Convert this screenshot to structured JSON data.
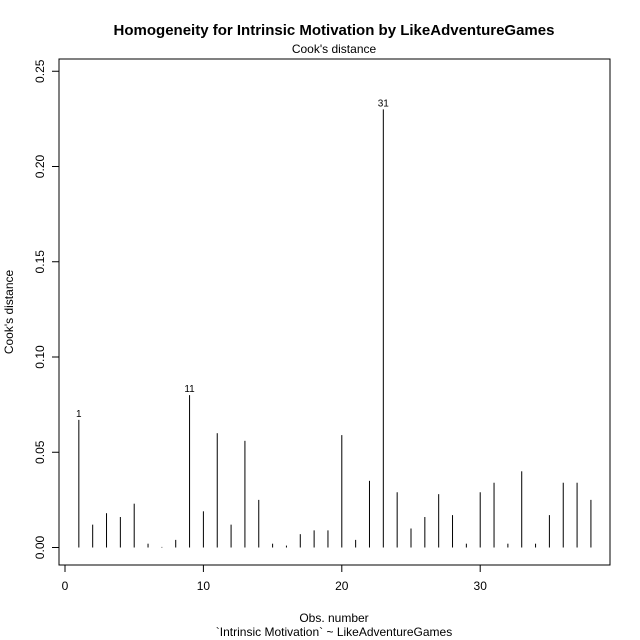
{
  "chart_data": {
    "type": "bar",
    "title": "Homogeneity for Intrinsic Motivation by LikeAdventureGames",
    "subtitle": "Cook's distance",
    "xlabel": "Obs. number",
    "xlabel2": "`Intrinsic Motivation` ~ LikeAdventureGames",
    "ylabel": "Cook's distance",
    "xlim": [
      0,
      39.5
    ],
    "ylim": [
      0,
      0.25
    ],
    "x_ticks": [
      "0",
      "10",
      "20",
      "30"
    ],
    "y_ticks": [
      "0.00",
      "0.05",
      "0.10",
      "0.15",
      "0.20",
      "0.25"
    ],
    "grid": false,
    "x": [
      1,
      2,
      3,
      4,
      5,
      6,
      7,
      8,
      9,
      10,
      11,
      12,
      13,
      14,
      15,
      16,
      17,
      18,
      19,
      20,
      21,
      22,
      23,
      24,
      25,
      26,
      27,
      28,
      29,
      30,
      31,
      32,
      33,
      34,
      35,
      36,
      37,
      38
    ],
    "values": [
      0.067,
      0.012,
      0.018,
      0.016,
      0.023,
      0.002,
      0.0003,
      0.004,
      0.08,
      0.019,
      0.06,
      0.012,
      0.056,
      0.025,
      0.002,
      0.001,
      0.007,
      0.009,
      0.009,
      0.059,
      0.004,
      0.035,
      0.23,
      0.029,
      0.01,
      0.016,
      0.028,
      0.017,
      0.002,
      0.029,
      0.034,
      0.002,
      0.04,
      0.002,
      0.017,
      0.034,
      0.034,
      0.025
    ],
    "annotations": [
      {
        "x": 1,
        "text": "1"
      },
      {
        "x": 9,
        "text": "11"
      },
      {
        "x": 23,
        "text": "31"
      }
    ]
  }
}
